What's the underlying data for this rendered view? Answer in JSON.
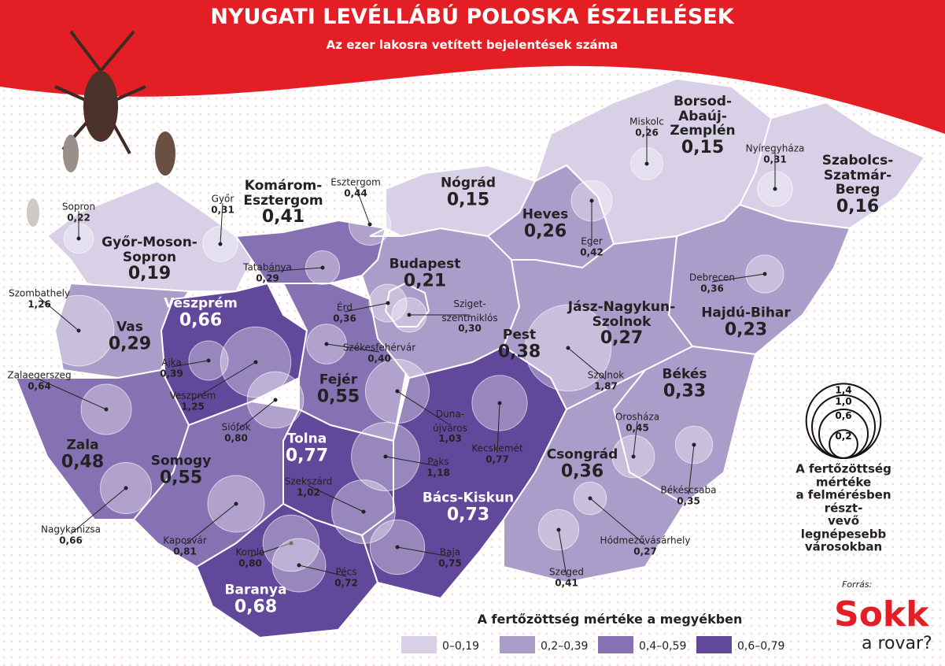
{
  "header": {
    "title": "NYUGATI LEVÉLLÁBÚ POLOSKA ÉSZLELÉSEK",
    "subtitle": "Az ezer lakosra vetített bejelentések száma"
  },
  "counties": [
    {
      "name": "Győr-Moson-\nSopron",
      "value": 0.19,
      "label": "0,19"
    },
    {
      "name": "Komárom-\nEsztergom",
      "value": 0.41,
      "label": "0,41"
    },
    {
      "name": "Vas",
      "value": 0.29,
      "label": "0,29"
    },
    {
      "name": "Veszprém",
      "value": 0.66,
      "label": "0,66"
    },
    {
      "name": "Zala",
      "value": 0.48,
      "label": "0,48"
    },
    {
      "name": "Fejér",
      "value": 0.55,
      "label": "0,55"
    },
    {
      "name": "Somogy",
      "value": 0.55,
      "label": "0,55"
    },
    {
      "name": "Tolna",
      "value": 0.77,
      "label": "0,77"
    },
    {
      "name": "Baranya",
      "value": 0.68,
      "label": "0,68"
    },
    {
      "name": "Bács-Kiskun",
      "value": 0.73,
      "label": "0,73"
    },
    {
      "name": "Pest",
      "value": 0.38,
      "label": "0,38"
    },
    {
      "name": "Budapest",
      "value": 0.21,
      "label": "0,21"
    },
    {
      "name": "Nógrád",
      "value": 0.15,
      "label": "0,15"
    },
    {
      "name": "Heves",
      "value": 0.26,
      "label": "0,26"
    },
    {
      "name": "Borsod-\nAbaúj-\nZemplén",
      "value": 0.15,
      "label": "0,15"
    },
    {
      "name": "Szabolcs-Szatmár-\nBereg",
      "value": 0.16,
      "label": "0,16"
    },
    {
      "name": "Hajdú-Bihar",
      "value": 0.23,
      "label": "0,23"
    },
    {
      "name": "Jász-Nagykun-\nSzolnok",
      "value": 0.27,
      "label": "0,27"
    },
    {
      "name": "Békés",
      "value": 0.33,
      "label": "0,33"
    },
    {
      "name": "Csongrád",
      "value": 0.36,
      "label": "0,36"
    }
  ],
  "cities": [
    {
      "name": "Sopron",
      "value": 0.22,
      "label": "0,22"
    },
    {
      "name": "Győr",
      "value": 0.31,
      "label": "0,31"
    },
    {
      "name": "Esztergom",
      "value": 0.44,
      "label": "0,44"
    },
    {
      "name": "Tatabánya",
      "value": 0.29,
      "label": "0,29"
    },
    {
      "name": "Szombathely",
      "value": 1.26,
      "label": "1,26"
    },
    {
      "name": "Érd",
      "value": 0.36,
      "label": "0,36"
    },
    {
      "name": "Sziget-\nszentmiklós",
      "value": 0.3,
      "label": "0,30"
    },
    {
      "name": "Székesfehérvár",
      "value": 0.4,
      "label": "0,40"
    },
    {
      "name": "Ajka",
      "value": 0.39,
      "label": "0,39"
    },
    {
      "name": "Veszprém",
      "value": 1.25,
      "label": "1,25"
    },
    {
      "name": "Siófok",
      "value": 0.8,
      "label": "0,80"
    },
    {
      "name": "Zalaegerszeg",
      "value": 0.64,
      "label": "0,64"
    },
    {
      "name": "Miskolc",
      "value": 0.26,
      "label": "0,26"
    },
    {
      "name": "Nyíregyháza",
      "value": 0.31,
      "label": "0,31"
    },
    {
      "name": "Eger",
      "value": 0.42,
      "label": "0,42"
    },
    {
      "name": "Debrecen",
      "value": 0.36,
      "label": "0,36"
    },
    {
      "name": "Szolnok",
      "value": 1.87,
      "label": "1,87"
    },
    {
      "name": "Duna-\nújváros",
      "value": 1.03,
      "label": "1,03"
    },
    {
      "name": "Kecskemét",
      "value": 0.77,
      "label": "0,77"
    },
    {
      "name": "Paks",
      "value": 1.18,
      "label": "1,18"
    },
    {
      "name": "Szekszárd",
      "value": 1.02,
      "label": "1,02"
    },
    {
      "name": "Orosháza",
      "value": 0.45,
      "label": "0,45"
    },
    {
      "name": "Békéscsaba",
      "value": 0.35,
      "label": "0,35"
    },
    {
      "name": "Nagykanizsa",
      "value": 0.66,
      "label": "0,66"
    },
    {
      "name": "Kaposvár",
      "value": 0.81,
      "label": "0,81"
    },
    {
      "name": "Komló",
      "value": 0.8,
      "label": "0,80"
    },
    {
      "name": "Pécs",
      "value": 0.72,
      "label": "0,72"
    },
    {
      "name": "Baja",
      "value": 0.75,
      "label": "0,75"
    },
    {
      "name": "Hódmezővásárhely",
      "value": 0.27,
      "label": "0,27"
    },
    {
      "name": "Szeged",
      "value": 0.41,
      "label": "0,41"
    }
  ],
  "county_legend": {
    "title": "A fertőzöttség mértéke a megyékben",
    "classes": [
      {
        "label": "0–0,19",
        "from": 0,
        "to": 0.19,
        "color": "#d8d0e6"
      },
      {
        "label": "0,2–0,39",
        "from": 0.2,
        "to": 0.39,
        "color": "#ab9dca"
      },
      {
        "label": "0,4–0,59",
        "from": 0.4,
        "to": 0.59,
        "color": "#8671b3"
      },
      {
        "label": "0,6–0,79",
        "from": 0.6,
        "to": 0.79,
        "color": "#62489a"
      }
    ]
  },
  "circle_legend": {
    "text": "A fertőzöttség mértéke\na felmérésben részt-\nvevő legnépesebb\nvárosokban",
    "sizes": [
      {
        "value": 1.4,
        "label": "1,4"
      },
      {
        "value": 1.0,
        "label": "1,0"
      },
      {
        "value": 0.6,
        "label": "0,6"
      },
      {
        "value": 0.2,
        "label": "0,2"
      }
    ]
  },
  "source": {
    "label": "Forrás:",
    "logo_top": "Sokk",
    "logo_bottom": "a rovar?"
  }
}
